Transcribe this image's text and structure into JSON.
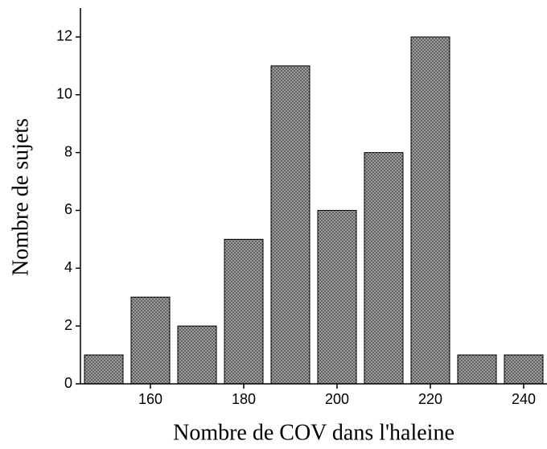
{
  "chart_data": {
    "type": "histogram",
    "xlabel": "Nombre de COV dans l'haleine",
    "ylabel": "Nombre de sujets",
    "bins": [
      145,
      155,
      165,
      175,
      185,
      195,
      205,
      215,
      225,
      235,
      245
    ],
    "values": [
      1,
      3,
      2,
      5,
      11,
      6,
      8,
      12,
      1,
      1
    ],
    "color": "#555555",
    "xlim": [
      145,
      245
    ],
    "xticks": [
      160,
      180,
      200,
      220,
      240
    ],
    "ylim": [
      0,
      13
    ],
    "yticks": [
      0,
      2,
      4,
      6,
      8,
      10,
      12
    ]
  }
}
